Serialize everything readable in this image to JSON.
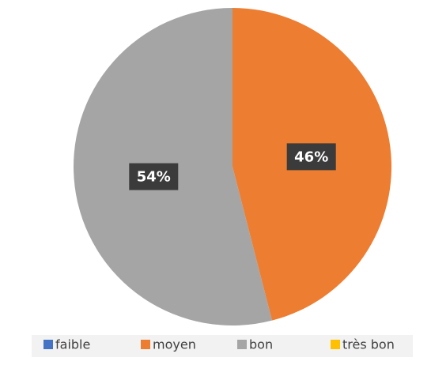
{
  "chart_data": {
    "type": "pie",
    "categories": [
      "faible",
      "moyen",
      "bon",
      "très bon"
    ],
    "values": [
      0,
      46,
      54,
      0
    ],
    "value_labels": [
      null,
      "46%",
      "54%",
      null
    ],
    "colors": [
      "#4472c4",
      "#ed7d31",
      "#a5a5a5",
      "#ffc000"
    ],
    "legend": "bottom"
  }
}
